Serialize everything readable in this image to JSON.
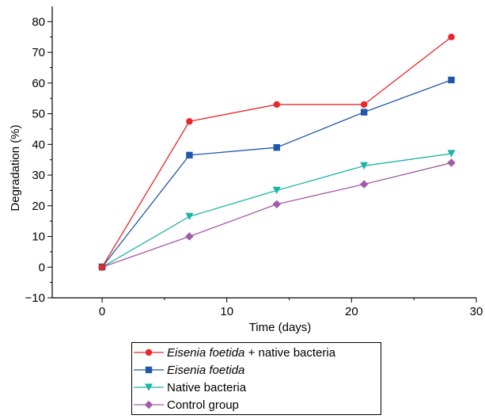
{
  "chart_data": {
    "type": "line",
    "xlabel": "Time (days)",
    "ylabel": "Degradation (%)",
    "xlim": [
      -4,
      30
    ],
    "ylim": [
      -10,
      85
    ],
    "xticks": [
      0,
      10,
      20,
      30
    ],
    "yticks": [
      -10,
      0,
      10,
      20,
      30,
      40,
      50,
      60,
      70,
      80
    ],
    "x": [
      0,
      7,
      14,
      21,
      28
    ],
    "grid": false,
    "legend_placement": "below",
    "series": [
      {
        "name_italic": "Eisenia foetida",
        "name_rest": " + native bacteria",
        "name": "Eisenia foetida + native bacteria",
        "color": "#e8262a",
        "marker": "circle",
        "values": [
          0,
          47.5,
          53,
          53,
          75
        ]
      },
      {
        "name_italic": "Eisenia foetida",
        "name_rest": "",
        "name": "Eisenia foetida",
        "color": "#1f56a8",
        "marker": "square",
        "values": [
          0,
          36.5,
          39,
          50.5,
          61
        ]
      },
      {
        "name_italic": "",
        "name_rest": "Native bacteria",
        "name": "Native bacteria",
        "color": "#1db3a6",
        "marker": "triangle-down",
        "values": [
          0,
          16.5,
          25,
          33,
          37
        ]
      },
      {
        "name_italic": "",
        "name_rest": "Control group",
        "name": "Control group",
        "color": "#a35aa8",
        "marker": "diamond",
        "values": [
          0,
          10,
          20.5,
          27,
          34
        ]
      }
    ]
  }
}
